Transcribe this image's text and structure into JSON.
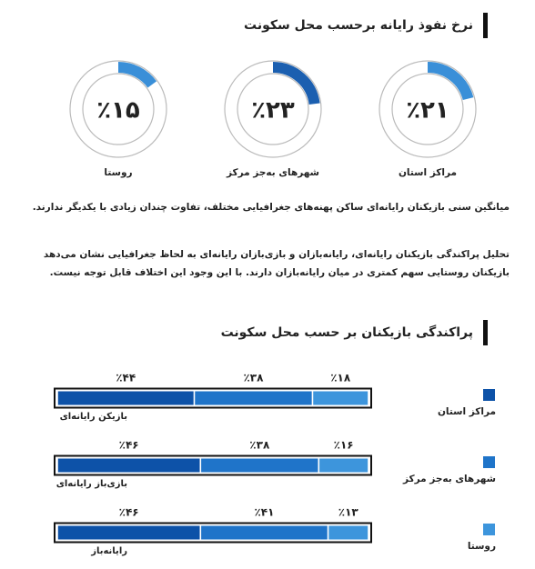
{
  "chart_data": [
    {
      "type": "donut",
      "title": "نرخ نفوذ رایانه برحسب محل سکونت",
      "categories": [
        "مراکز استان",
        "شهرهای به‌جز مرکز",
        "روستا"
      ],
      "values": [
        21,
        23,
        15
      ],
      "value_labels": [
        "٪۲۱",
        "٪۲۳",
        "٪۱۵"
      ],
      "colors": [
        "#3a8fd8",
        "#1b5fb0",
        "#3a8fd8"
      ]
    },
    {
      "type": "stacked-bar",
      "title": "پراکندگی بازیکنان بر حسب محل سکونت",
      "categories": [
        "بازیکن رایانه‌ای",
        "بازی‌باز رایانه‌ای",
        "رایانه‌باز"
      ],
      "xlim": [
        0,
        100
      ],
      "series": [
        {
          "name": "مراکز استان",
          "color": "#0d52a8",
          "values": [
            44,
            46,
            46
          ],
          "value_labels": [
            "٪۴۴",
            "٪۴۶",
            "٪۴۶"
          ]
        },
        {
          "name": "شهرهای به‌جز مرکز",
          "color": "#1f74c9",
          "values": [
            38,
            38,
            41
          ],
          "value_labels": [
            "٪۳۸",
            "٪۳۸",
            "٪۴۱"
          ]
        },
        {
          "name": "روستا",
          "color": "#3d95dc",
          "values": [
            18,
            16,
            13
          ],
          "value_labels": [
            "٪۱۸",
            "٪۱۶",
            "٪۱۳"
          ]
        }
      ]
    }
  ],
  "paragraphs": [
    "میانگین سنی بازیکنان رایانه‌ای ساکن پهنه‌های جغرافیایی مختلف، تفاوت چندان زیادی با یکدیگر ندارند.",
    "تحلیل پراکندگی بازیکنان رایانه‌ای، رایانه‌بازان و بازی‌بازان رایانه‌ای به لحاظ جغرافیایی نشان می‌دهد بازیکنان روستایی سهم کمتری در میان رایانه‌بازان دارند. با این وجود این اختلاف قابل توجه نیست."
  ]
}
